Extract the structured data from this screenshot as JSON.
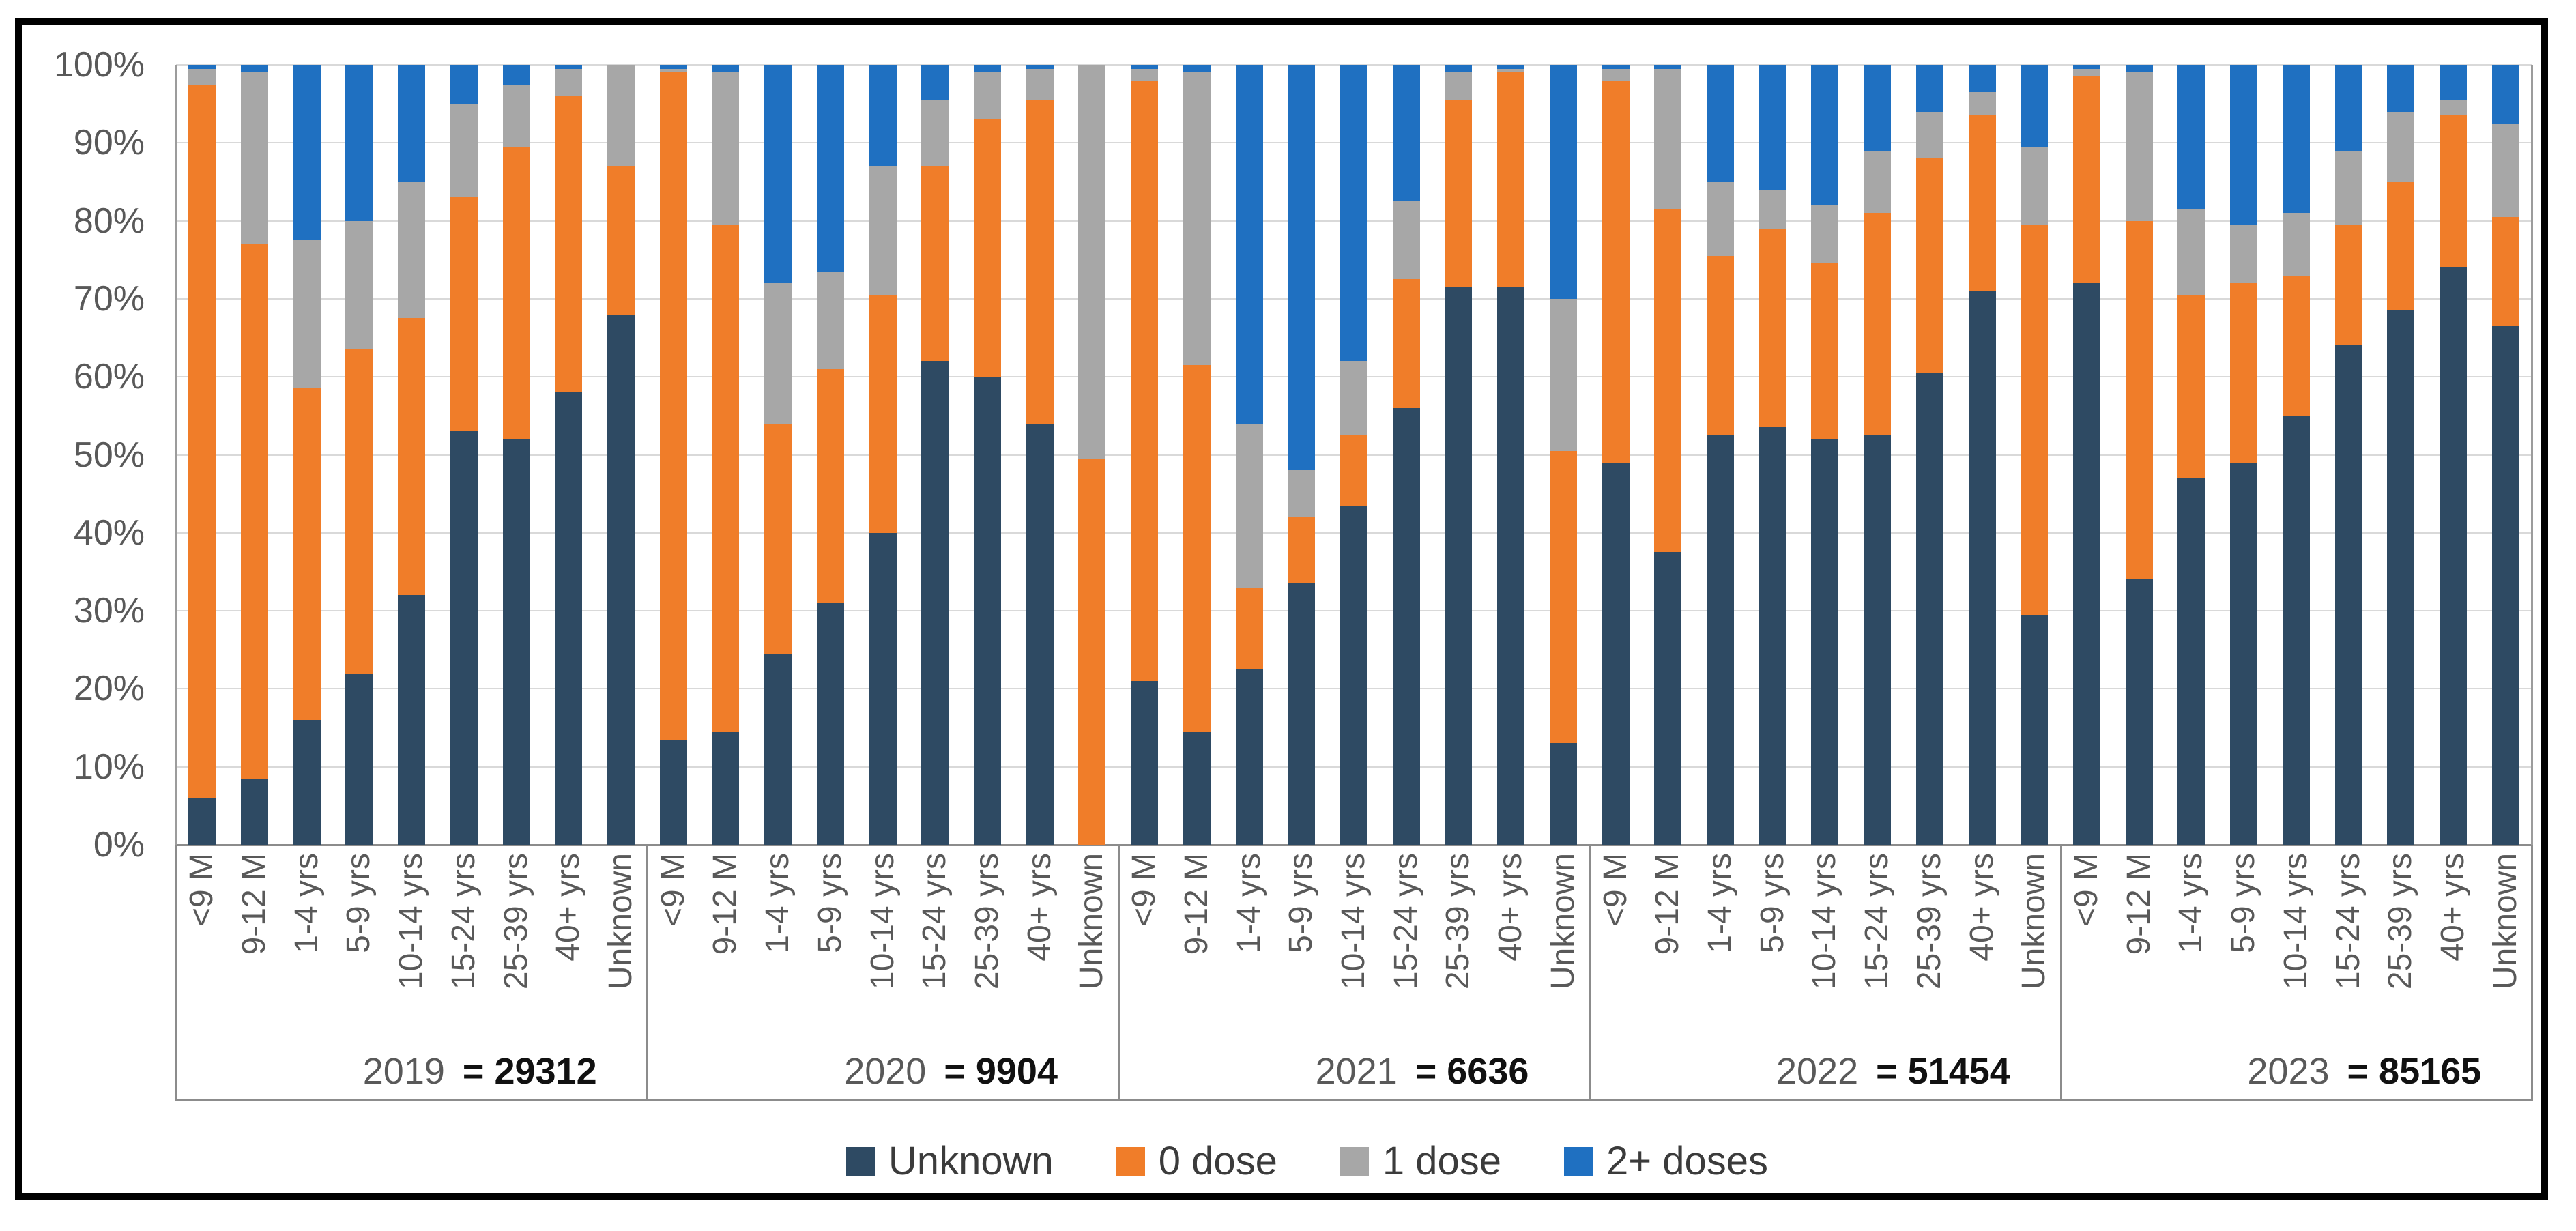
{
  "chart_data": {
    "type": "bar",
    "variant": "stacked-100-percent",
    "title": "",
    "xlabel": "",
    "ylabel": "",
    "ylim": [
      0,
      100
    ],
    "grid": true,
    "legend_position": "bottom",
    "ytick_labels": [
      "0%",
      "10%",
      "20%",
      "30%",
      "40%",
      "50%",
      "60%",
      "70%",
      "80%",
      "90%",
      "100%"
    ],
    "series_names": [
      "Unknown",
      "0 dose",
      "1 dose",
      "2+ doses"
    ],
    "series_colors": [
      "#2E4A63",
      "#F07D29",
      "#A7A7A7",
      "#1F70C1"
    ],
    "categories": [
      "<9 M",
      "9-12 M",
      "1-4 yrs",
      "5-9 yrs",
      "10-14 yrs",
      "15-24 yrs",
      "25-39 yrs",
      "40+ yrs",
      "Unknown"
    ],
    "groups": [
      {
        "year": "2019",
        "total": "= 29312",
        "values": [
          [
            6,
            91.5,
            2,
            0.5
          ],
          [
            8.5,
            68.5,
            22,
            1
          ],
          [
            16,
            42.5,
            19,
            22.5
          ],
          [
            22,
            41.5,
            16.5,
            20
          ],
          [
            32,
            35.5,
            17.5,
            15
          ],
          [
            53,
            30,
            12,
            5
          ],
          [
            52,
            37.5,
            8,
            2.5
          ],
          [
            58,
            38,
            3.5,
            0.5
          ],
          [
            68,
            19,
            13,
            0
          ]
        ]
      },
      {
        "year": "2020",
        "total": "= 9904",
        "values": [
          [
            13.5,
            85.5,
            0.5,
            0.5
          ],
          [
            14.5,
            65,
            19.5,
            1
          ],
          [
            24.5,
            29.5,
            18,
            28
          ],
          [
            31,
            30,
            12.5,
            26.5
          ],
          [
            40,
            30.5,
            16.5,
            13
          ],
          [
            62,
            25,
            8.5,
            4.5
          ],
          [
            60,
            33,
            6,
            1
          ],
          [
            54,
            41.5,
            4,
            0.5
          ],
          [
            0,
            49.5,
            50.5,
            0
          ]
        ]
      },
      {
        "year": "2021",
        "total": "= 6636",
        "values": [
          [
            21,
            77,
            1.5,
            0.5
          ],
          [
            14.5,
            47,
            37.5,
            1
          ],
          [
            22.5,
            10.5,
            21,
            46
          ],
          [
            33.5,
            8.5,
            6,
            52
          ],
          [
            43.5,
            9,
            9.5,
            38
          ],
          [
            56,
            16.5,
            10,
            17.5
          ],
          [
            71.5,
            24,
            3.5,
            1
          ],
          [
            71.5,
            27.5,
            0.5,
            0.5
          ],
          [
            13,
            37.5,
            19.5,
            30
          ]
        ]
      },
      {
        "year": "2022",
        "total": "= 51454",
        "values": [
          [
            49,
            49,
            1.5,
            0.5
          ],
          [
            37.5,
            44,
            18,
            0.5
          ],
          [
            52.5,
            23,
            9.5,
            15
          ],
          [
            53.5,
            25.5,
            5,
            16
          ],
          [
            52,
            22.5,
            7.5,
            18
          ],
          [
            52.5,
            28.5,
            8,
            11
          ],
          [
            60.5,
            27.5,
            6,
            6
          ],
          [
            71,
            22.5,
            3,
            3.5
          ],
          [
            29.5,
            50,
            10,
            10.5
          ]
        ]
      },
      {
        "year": "2023",
        "total": "= 85165",
        "values": [
          [
            72,
            26.5,
            1,
            0.5
          ],
          [
            34,
            46,
            19,
            1
          ],
          [
            47,
            23.5,
            11,
            18.5
          ],
          [
            49,
            23,
            7.5,
            20.5
          ],
          [
            55,
            18,
            8,
            19
          ],
          [
            64,
            15.5,
            9.5,
            11
          ],
          [
            68.5,
            16.5,
            9,
            6
          ],
          [
            74,
            19.5,
            2,
            4.5
          ],
          [
            66.5,
            14,
            12,
            7.5
          ]
        ]
      }
    ]
  }
}
